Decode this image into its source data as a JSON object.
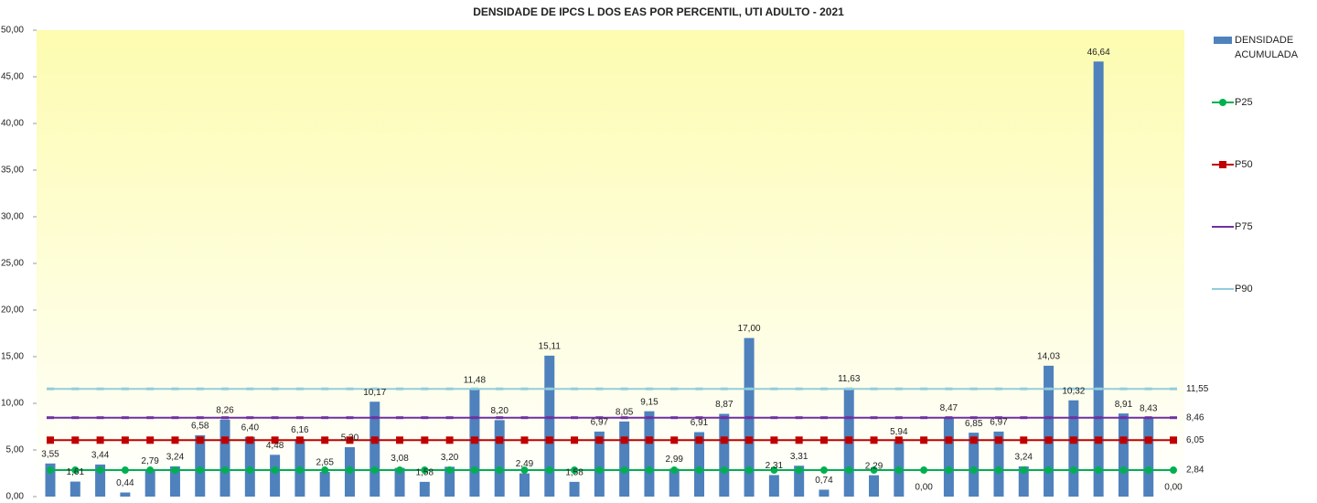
{
  "chart_data": {
    "type": "bar",
    "title": "DENSIDADE DE IPCS L DOS EAS POR PERCENTIL, UTI ADULTO - 2021",
    "ylim": [
      0,
      50
    ],
    "yticks": [
      {
        "value": 0,
        "label": "0,00"
      },
      {
        "value": 5,
        "label": "5,00"
      },
      {
        "value": 10,
        "label": "10,00"
      },
      {
        "value": 15,
        "label": "15,00"
      },
      {
        "value": 20,
        "label": "20,00"
      },
      {
        "value": 25,
        "label": "25,00"
      },
      {
        "value": 30,
        "label": "30,00"
      },
      {
        "value": 35,
        "label": "35,00"
      },
      {
        "value": 40,
        "label": "40,00"
      },
      {
        "value": 45,
        "label": "45,00"
      },
      {
        "value": 50,
        "label": "50,00"
      }
    ],
    "series": [
      {
        "name": "DENSIDADE ACUMULADA",
        "type": "bar",
        "color": "#4f81bd",
        "values": [
          3.55,
          1.61,
          3.44,
          0.44,
          2.79,
          3.24,
          6.58,
          8.26,
          6.4,
          4.48,
          6.16,
          2.65,
          5.3,
          10.17,
          3.08,
          1.58,
          3.2,
          11.48,
          8.2,
          2.49,
          15.11,
          1.58,
          6.97,
          8.05,
          9.15,
          2.99,
          6.91,
          8.87,
          17.0,
          2.31,
          3.31,
          0.74,
          11.63,
          2.29,
          5.94,
          0.0,
          8.47,
          6.85,
          6.97,
          3.24,
          14.03,
          10.32,
          46.64,
          8.91,
          8.43,
          0.0
        ],
        "value_labels": [
          "3,55",
          "1,61",
          "3,44",
          "0,44",
          "2,79",
          "3,24",
          "6,58",
          "8,26",
          "6,40",
          "4,48",
          "6,16",
          "2,65",
          "5,30",
          "10,17",
          "3,08",
          "1,58",
          "3,20",
          "11,48",
          "8,20",
          "2,49",
          "15,11",
          "1,58",
          "6,97",
          "8,05",
          "9,15",
          "2,99",
          "6,91",
          "8,87",
          "17,00",
          "2,31",
          "3,31",
          "0,74",
          "11,63",
          "2,29",
          "5,94",
          "0,00",
          "8,47",
          "6,85",
          "6,97",
          "3,24",
          "14,03",
          "10,32",
          "46,64",
          "8,91",
          "8,43",
          "0,00"
        ]
      },
      {
        "name": "P25",
        "type": "line",
        "marker": "circle",
        "color": "#00b050",
        "value_label": "2,84",
        "values": [
          2.84,
          2.84,
          2.84,
          2.84,
          2.84,
          2.84,
          2.84,
          2.84,
          2.84,
          2.84,
          2.84,
          2.84,
          2.84,
          2.84,
          2.84,
          2.84,
          2.84,
          2.84,
          2.84,
          2.84,
          2.84,
          2.84,
          2.84,
          2.84,
          2.84,
          2.84,
          2.84,
          2.84,
          2.84,
          2.84,
          2.84,
          2.84,
          2.84,
          2.84,
          2.84,
          2.84,
          2.84,
          2.84,
          2.84,
          2.84,
          2.84,
          2.84,
          2.84,
          2.84,
          2.84,
          2.84
        ]
      },
      {
        "name": "P50",
        "type": "line",
        "marker": "square",
        "color": "#c00000",
        "value_label": "6,05",
        "values": [
          6.05,
          6.05,
          6.05,
          6.05,
          6.05,
          6.05,
          6.05,
          6.05,
          6.05,
          6.05,
          6.05,
          6.05,
          6.05,
          6.05,
          6.05,
          6.05,
          6.05,
          6.05,
          6.05,
          6.05,
          6.05,
          6.05,
          6.05,
          6.05,
          6.05,
          6.05,
          6.05,
          6.05,
          6.05,
          6.05,
          6.05,
          6.05,
          6.05,
          6.05,
          6.05,
          6.05,
          6.05,
          6.05,
          6.05,
          6.05,
          6.05,
          6.05,
          6.05,
          6.05,
          6.05,
          6.05
        ]
      },
      {
        "name": "P75",
        "type": "line",
        "marker": "dash",
        "color": "#7030a0",
        "value_label": "8,46",
        "values": [
          8.46,
          8.46,
          8.46,
          8.46,
          8.46,
          8.46,
          8.46,
          8.46,
          8.46,
          8.46,
          8.46,
          8.46,
          8.46,
          8.46,
          8.46,
          8.46,
          8.46,
          8.46,
          8.46,
          8.46,
          8.46,
          8.46,
          8.46,
          8.46,
          8.46,
          8.46,
          8.46,
          8.46,
          8.46,
          8.46,
          8.46,
          8.46,
          8.46,
          8.46,
          8.46,
          8.46,
          8.46,
          8.46,
          8.46,
          8.46,
          8.46,
          8.46,
          8.46,
          8.46,
          8.46,
          8.46
        ]
      },
      {
        "name": "P90",
        "type": "line",
        "marker": "dash",
        "color": "#92cddc",
        "value_label": "11,55",
        "values": [
          11.55,
          11.55,
          11.55,
          11.55,
          11.55,
          11.55,
          11.55,
          11.55,
          11.55,
          11.55,
          11.55,
          11.55,
          11.55,
          11.55,
          11.55,
          11.55,
          11.55,
          11.55,
          11.55,
          11.55,
          11.55,
          11.55,
          11.55,
          11.55,
          11.55,
          11.55,
          11.55,
          11.55,
          11.55,
          11.55,
          11.55,
          11.55,
          11.55,
          11.55,
          11.55,
          11.55,
          11.55,
          11.55,
          11.55,
          11.55,
          11.55,
          11.55,
          11.55,
          11.55,
          11.55,
          11.55
        ]
      }
    ]
  }
}
